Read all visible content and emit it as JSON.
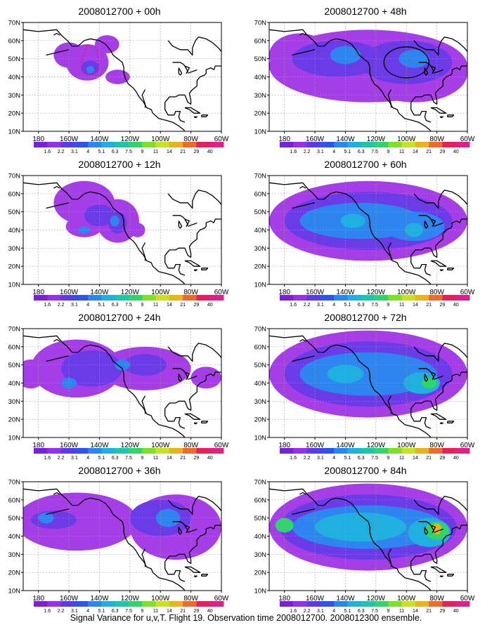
{
  "figure": {
    "caption": "Signal Variance for u,v,T. Flight 19. Observation time 2008012700. 2008012300 ensemble."
  },
  "axes": {
    "lon_ticks": [
      "180",
      "160W",
      "140W",
      "120W",
      "100W",
      "80W",
      "60W"
    ],
    "lat_ticks": [
      "10N",
      "20N",
      "30N",
      "40N",
      "50N",
      "60N",
      "70N"
    ],
    "lon_range": [
      -190,
      -60
    ],
    "lat_range": [
      10,
      70
    ]
  },
  "colorbar": {
    "labels": [
      "1.6",
      "2.2",
      "3.1",
      "4",
      "5.1",
      "6.3",
      "7.5",
      "9",
      "11",
      "14",
      "21",
      "29",
      "40"
    ],
    "colors": [
      "#7b1fd8",
      "#9a2fe8",
      "#5b3be8",
      "#2f55e8",
      "#2a86f0",
      "#1fb0e0",
      "#19c8a8",
      "#2fd46a",
      "#7fe02a",
      "#c8e31e",
      "#e8b41a",
      "#ee6a2a",
      "#e8205a",
      "#e01f8c"
    ]
  },
  "chart_data": [
    {
      "type": "heatmap",
      "title": "2008012700 + 00h",
      "position": "left",
      "row": 0,
      "levels": [
        {
          "fill": "#a63ee8",
          "blobs": [
            [
              -148,
              48,
              14,
              10
            ],
            [
              -160,
              52,
              10,
              7
            ],
            [
              -128,
              40,
              8,
              4
            ],
            [
              -135,
              58,
              8,
              5
            ]
          ]
        },
        {
          "fill": "#6a3be6",
          "blobs": [
            [
              -146,
              45,
              6,
              4
            ]
          ]
        },
        {
          "fill": "#2f85f0",
          "blobs": [
            [
              -146,
              44,
              2.5,
              2
            ]
          ]
        }
      ],
      "annotations": [
        {
          "kind": "dotted-loop",
          "color": "#e0205a"
        }
      ]
    },
    {
      "type": "heatmap",
      "title": "2008012700 + 12h",
      "position": "left",
      "row": 1,
      "levels": [
        {
          "fill": "#a63ee8",
          "blobs": [
            [
              -150,
              55,
              20,
              12
            ],
            [
              -128,
              45,
              14,
              12
            ],
            [
              -150,
              42,
              12,
              6
            ],
            [
              -115,
              40,
              5,
              4
            ]
          ]
        },
        {
          "fill": "#6a3be6",
          "blobs": [
            [
              -140,
              48,
              10,
              6
            ],
            [
              -128,
              44,
              6,
              6
            ]
          ]
        },
        {
          "fill": "#2f85f0",
          "blobs": [
            [
              -150,
              40,
              4,
              2
            ],
            [
              -130,
              45,
              3,
              3
            ]
          ]
        }
      ],
      "annotations": []
    },
    {
      "type": "heatmap",
      "title": "2008012700 + 24h",
      "position": "left",
      "row": 2,
      "levels": [
        {
          "fill": "#a63ee8",
          "blobs": [
            [
              -185,
              45,
              10,
              8
            ],
            [
              -155,
              48,
              30,
              16
            ],
            [
              -110,
              48,
              30,
              12
            ],
            [
              -70,
              43,
              10,
              6
            ]
          ]
        },
        {
          "fill": "#6a3be6",
          "blobs": [
            [
              -145,
              48,
              20,
              10
            ],
            [
              -110,
              50,
              14,
              6
            ]
          ]
        },
        {
          "fill": "#2f85f0",
          "blobs": [
            [
              -160,
              40,
              5,
              3
            ],
            [
              -125,
              50,
              5,
              3
            ]
          ]
        }
      ],
      "annotations": []
    },
    {
      "type": "heatmap",
      "title": "2008012700 + 36h",
      "position": "left",
      "row": 3,
      "levels": [
        {
          "fill": "#a63ee8",
          "blobs": [
            [
              -155,
              48,
              40,
              16
            ],
            [
              -90,
              45,
              30,
              18
            ],
            [
              -160,
              35,
              4,
              3
            ]
          ]
        },
        {
          "fill": "#6a3be6",
          "blobs": [
            [
              -170,
              49,
              15,
              5
            ],
            [
              -100,
              50,
              20,
              10
            ]
          ]
        },
        {
          "fill": "#2f85f0",
          "blobs": [
            [
              -175,
              50,
              5,
              3
            ],
            [
              -95,
              50,
              8,
              5
            ]
          ]
        }
      ],
      "annotations": []
    },
    {
      "type": "heatmap",
      "title": "2008012700 + 48h",
      "position": "right",
      "row": 0,
      "levels": [
        {
          "fill": "#a63ee8",
          "blobs": [
            [
              -125,
              46,
              65,
              20
            ],
            [
              -170,
              52,
              20,
              12
            ],
            [
              -95,
              42,
              35,
              16
            ]
          ]
        },
        {
          "fill": "#6a3be6",
          "blobs": [
            [
              -145,
              50,
              30,
              10
            ],
            [
              -100,
              48,
              30,
              12
            ]
          ]
        },
        {
          "fill": "#2f85f0",
          "blobs": [
            [
              -140,
              52,
              10,
              5
            ],
            [
              -95,
              50,
              10,
              5
            ]
          ]
        }
      ],
      "annotations": [
        {
          "kind": "circle",
          "color": "#000"
        }
      ]
    },
    {
      "type": "heatmap",
      "title": "2008012700 + 60h",
      "position": "right",
      "row": 1,
      "levels": [
        {
          "fill": "#a63ee8",
          "blobs": [
            [
              -125,
              45,
              65,
              22
            ]
          ]
        },
        {
          "fill": "#6a3be6",
          "blobs": [
            [
              -125,
              45,
              55,
              16
            ]
          ]
        },
        {
          "fill": "#2f85f0",
          "blobs": [
            [
              -130,
              45,
              40,
              10
            ],
            [
              -95,
              42,
              20,
              8
            ]
          ]
        },
        {
          "fill": "#1fb0e0",
          "blobs": [
            [
              -135,
              45,
              8,
              4
            ],
            [
              -95,
              40,
              6,
              4
            ]
          ]
        }
      ],
      "annotations": []
    },
    {
      "type": "heatmap",
      "title": "2008012700 + 72h",
      "position": "right",
      "row": 2,
      "levels": [
        {
          "fill": "#a63ee8",
          "blobs": [
            [
              -125,
              45,
              65,
              24
            ]
          ]
        },
        {
          "fill": "#6a3be6",
          "blobs": [
            [
              -125,
              45,
              55,
              18
            ]
          ]
        },
        {
          "fill": "#2f85f0",
          "blobs": [
            [
              -125,
              45,
              45,
              12
            ]
          ]
        },
        {
          "fill": "#1fb0e0",
          "blobs": [
            [
              -90,
              40,
              12,
              6
            ],
            [
              -140,
              45,
              12,
              5
            ]
          ]
        },
        {
          "fill": "#2fd46a",
          "blobs": [
            [
              -85,
              40,
              5,
              3
            ]
          ]
        }
      ],
      "annotations": []
    },
    {
      "type": "heatmap",
      "title": "2008012700 + 84h",
      "position": "right",
      "row": 3,
      "levels": [
        {
          "fill": "#a63ee8",
          "blobs": [
            [
              -125,
              45,
              65,
              24
            ]
          ]
        },
        {
          "fill": "#6a3be6",
          "blobs": [
            [
              -125,
              45,
              58,
              18
            ]
          ]
        },
        {
          "fill": "#2f85f0",
          "blobs": [
            [
              -125,
              45,
              50,
              12
            ]
          ]
        },
        {
          "fill": "#1fb0e0",
          "blobs": [
            [
              -130,
              45,
              30,
              8
            ],
            [
              -85,
              42,
              14,
              8
            ]
          ]
        },
        {
          "fill": "#2fd46a",
          "blobs": [
            [
              -180,
              46,
              6,
              4
            ],
            [
              -80,
              43,
              8,
              5
            ]
          ]
        },
        {
          "fill": "#e8b41a",
          "blobs": [
            [
              -80,
              44,
              3,
              3
            ]
          ]
        }
      ],
      "annotations": []
    }
  ]
}
